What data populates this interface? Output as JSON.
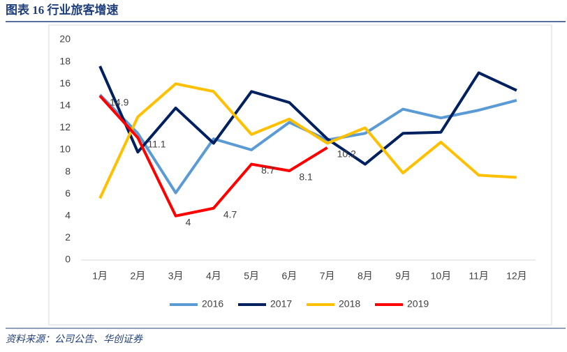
{
  "chart_data": {
    "type": "line",
    "title": "图表 16 行业旅客增速",
    "source": "资料来源：公司公告、华创证券",
    "categories": [
      "1月",
      "2月",
      "3月",
      "4月",
      "5月",
      "6月",
      "7月",
      "8月",
      "9月",
      "10月",
      "11月",
      "12月"
    ],
    "series": [
      {
        "name": "2016",
        "color": "#5b9bd5",
        "values": [
          15.0,
          11.5,
          6.1,
          11.0,
          10.0,
          12.5,
          10.9,
          11.5,
          13.7,
          12.9,
          13.6,
          14.5
        ]
      },
      {
        "name": "2017",
        "color": "#002060",
        "values": [
          17.6,
          9.8,
          13.8,
          10.6,
          15.3,
          14.3,
          11.0,
          8.7,
          11.5,
          11.6,
          17.0,
          15.4
        ]
      },
      {
        "name": "2018",
        "color": "#ffc000",
        "values": [
          5.6,
          13.0,
          16.0,
          15.3,
          11.4,
          12.8,
          10.6,
          12.0,
          7.9,
          10.7,
          7.7,
          7.5
        ]
      },
      {
        "name": "2019",
        "color": "#ff0000",
        "values": [
          14.9,
          11.1,
          4.0,
          4.7,
          8.7,
          8.1,
          10.2,
          null,
          null,
          null,
          null,
          null
        ],
        "data_labels": true
      }
    ],
    "ylim": [
      0,
      20
    ],
    "yticks": [
      0,
      2,
      4,
      6,
      8,
      10,
      12,
      14,
      16,
      18,
      20
    ],
    "grid": false,
    "legend": "bottom"
  }
}
